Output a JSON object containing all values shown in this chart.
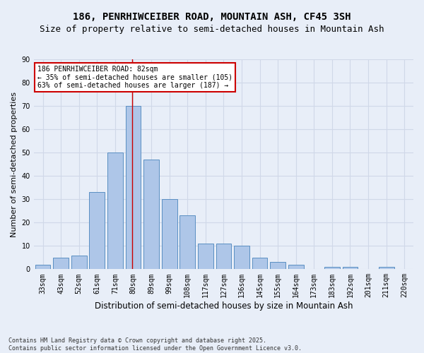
{
  "title": "186, PENRHIWCEIBER ROAD, MOUNTAIN ASH, CF45 3SH",
  "subtitle": "Size of property relative to semi-detached houses in Mountain Ash",
  "xlabel": "Distribution of semi-detached houses by size in Mountain Ash",
  "ylabel": "Number of semi-detached properties",
  "categories": [
    "33sqm",
    "43sqm",
    "52sqm",
    "61sqm",
    "71sqm",
    "80sqm",
    "89sqm",
    "99sqm",
    "108sqm",
    "117sqm",
    "127sqm",
    "136sqm",
    "145sqm",
    "155sqm",
    "164sqm",
    "173sqm",
    "183sqm",
    "192sqm",
    "201sqm",
    "211sqm",
    "220sqm"
  ],
  "values": [
    2,
    5,
    6,
    33,
    50,
    70,
    47,
    30,
    23,
    11,
    11,
    10,
    5,
    3,
    2,
    0,
    1,
    1,
    0,
    1,
    0
  ],
  "bar_color": "#aec6e8",
  "bar_edge_color": "#5a8fc2",
  "vline_bin_index": 5,
  "annotation_line1": "186 PENRHIWCEIBER ROAD: 82sqm",
  "annotation_line2": "← 35% of semi-detached houses are smaller (105)",
  "annotation_line3": "63% of semi-detached houses are larger (187) →",
  "annotation_box_color": "#ffffff",
  "annotation_box_edge_color": "#cc0000",
  "footer_text": "Contains HM Land Registry data © Crown copyright and database right 2025.\nContains public sector information licensed under the Open Government Licence v3.0.",
  "ylim": [
    0,
    90
  ],
  "yticks": [
    0,
    10,
    20,
    30,
    40,
    50,
    60,
    70,
    80,
    90
  ],
  "grid_color": "#d0d8e8",
  "background_color": "#e8eef8",
  "title_fontsize": 10,
  "subtitle_fontsize": 9,
  "ylabel_fontsize": 8,
  "xlabel_fontsize": 8.5,
  "tick_fontsize": 7,
  "annotation_fontsize": 7,
  "footer_fontsize": 6
}
